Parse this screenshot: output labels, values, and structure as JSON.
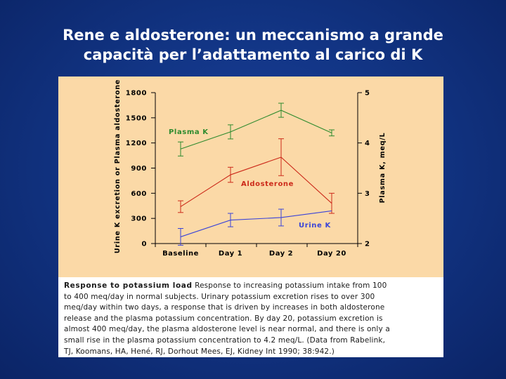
{
  "slide": {
    "title_line1": "Rene e aldosterone: un meccanismo a grande",
    "title_line2": "capacità per l’adattamento al carico di K"
  },
  "colors": {
    "background": "#123585",
    "figure_bg": "#fbd9a7",
    "plasma_k": "#2e8b2e",
    "aldosterone": "#cc2a1a",
    "urine_k": "#3a44d8"
  },
  "chart_data": {
    "type": "line",
    "categories": [
      "Baseline",
      "Day 1",
      "Day 2",
      "Day 20"
    ],
    "ylabel_left": "Urine K excretion or Plasma aldosterone",
    "ylabel_right": "Plasma K, meq/L",
    "ylim_left": [
      0,
      1800
    ],
    "yticks_left": [
      "0",
      "300",
      "600",
      "900",
      "1200",
      "1500",
      "1800"
    ],
    "ylim_right": [
      2,
      5
    ],
    "yticks_right": [
      "2",
      "3",
      "4",
      "5"
    ],
    "series": [
      {
        "name": "Plasma K",
        "axis": "right",
        "color": "#2e8b2e",
        "values": [
          3.88,
          4.22,
          4.65,
          4.2
        ],
        "errors": [
          0.14,
          0.14,
          0.14,
          0.06
        ]
      },
      {
        "name": "Aldosterone",
        "axis": "left",
        "color": "#cc2a1a",
        "values": [
          440,
          820,
          1030,
          480
        ],
        "errors": [
          70,
          90,
          220,
          120
        ]
      },
      {
        "name": "Urine K",
        "axis": "left",
        "color": "#3a44d8",
        "values": [
          80,
          280,
          310,
          390
        ],
        "errors": [
          100,
          80,
          100,
          0
        ]
      }
    ]
  },
  "caption": {
    "lead": "Response to potassium load",
    "lines": [
      " Response to increasing potassium intake from 100",
      "to 400 meq/day in normal subjects. Urinary potassium excretion rises to over 300",
      "meq/day within two days, a response that is driven by increases in both aldosterone",
      "release and the plasma potassium concentration. By day 20, potassium excretion is",
      "almost 400 meq/day, the plasma aldosterone level is near normal, and there is only a",
      "small rise in the plasma potassium concentration to 4.2 meq/L. (Data from Rabelink,",
      "TJ, Koomans, HA, Hené, RJ, Dorhout Mees, EJ, Kidney Int 1990; 38:942.)"
    ]
  }
}
